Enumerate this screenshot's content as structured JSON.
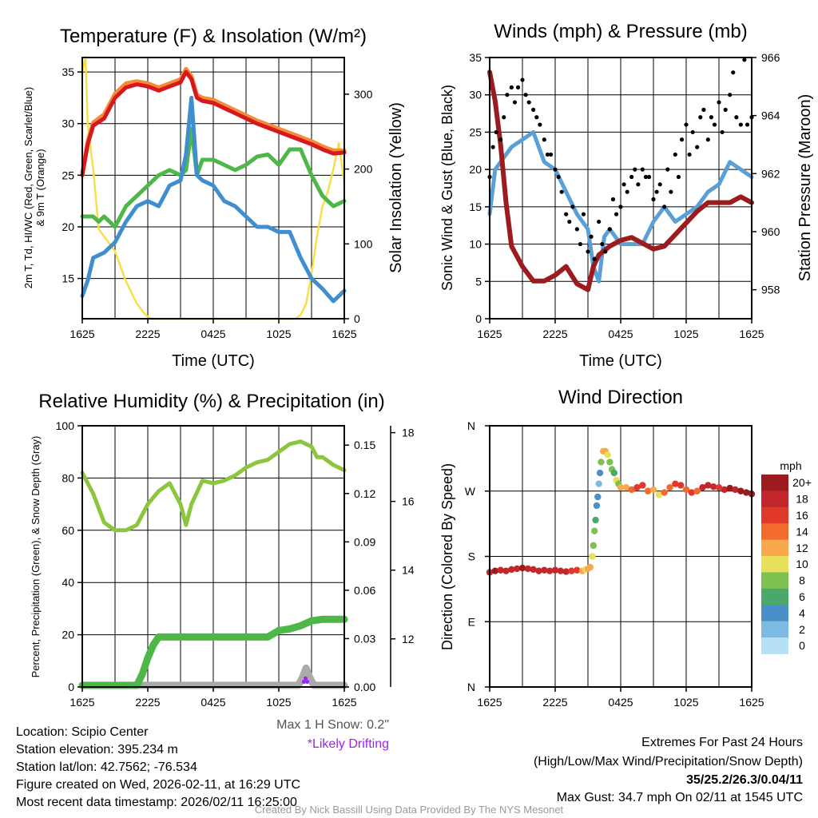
{
  "chart_data": [
    {
      "type": "line",
      "title": "Temperature (F) & Insolation (W/m²)",
      "xlabel": "Time (UTC)",
      "ylabel_lines": [
        "2m T, Td, HI/WC (Red, Green, Scarlet/Blue)",
        "& 9m T (Orange)"
      ],
      "y2label": "Solar Insolation (Yellow)",
      "x_ticks": [
        0,
        6,
        12,
        18,
        24
      ],
      "x_tick_labels": [
        "1625",
        "2225",
        "0425",
        "1025",
        "1625"
      ],
      "xlim": [
        0,
        24
      ],
      "y_ticks": [
        15,
        20,
        25,
        30,
        35
      ],
      "ylim": [
        11.1,
        36.4
      ],
      "y2_ticks": [
        0,
        100,
        200,
        300
      ],
      "y2lim": [
        0,
        349
      ],
      "grid": true,
      "series": [
        {
          "name": "Solar Insolation",
          "axis": "y2",
          "color": "#f5e04a",
          "x": [
            0,
            0.3,
            0.5,
            1,
            1.5,
            2,
            3,
            4,
            5,
            5.8,
            6.3,
            19.5,
            20,
            20.5,
            21,
            21.5,
            22,
            22.5,
            23,
            23.5,
            24
          ],
          "y": [
            330,
            350,
            260,
            200,
            120,
            110,
            90,
            50,
            20,
            5,
            0,
            0,
            5,
            20,
            60,
            110,
            150,
            170,
            200,
            235,
            180
          ]
        },
        {
          "name": "9m T",
          "axis": "y",
          "color": "#f58a3a",
          "x": [
            0,
            0.5,
            1,
            2,
            3,
            4,
            5,
            6,
            7,
            8,
            9,
            9.5,
            10,
            10.5,
            11,
            12,
            13,
            14,
            15,
            16,
            17,
            18,
            19,
            20,
            21,
            22,
            23,
            24
          ],
          "y": [
            25.3,
            28.3,
            30.1,
            30.9,
            32.9,
            33.9,
            34.1,
            33.9,
            33.5,
            33.9,
            34.3,
            35.3,
            34.6,
            32.8,
            32.5,
            32.3,
            31.8,
            31.3,
            30.8,
            30.3,
            29.9,
            29.5,
            29.1,
            28.7,
            28.3,
            27.8,
            27.4,
            27.4
          ]
        },
        {
          "name": "2m T",
          "axis": "y",
          "color": "#d7191c",
          "x": [
            0,
            0.5,
            1,
            2,
            3,
            4,
            5,
            6,
            7,
            8,
            9,
            9.5,
            10,
            10.5,
            11,
            12,
            13,
            14,
            15,
            16,
            17,
            18,
            19,
            20,
            21,
            22,
            23,
            24
          ],
          "y": [
            25,
            28,
            29.8,
            30.5,
            32.5,
            33.5,
            33.8,
            33.6,
            33.2,
            33.6,
            34,
            35,
            34.3,
            32.5,
            32.2,
            32,
            31.5,
            31,
            30.5,
            30,
            29.6,
            29.2,
            28.8,
            28.4,
            28,
            27.5,
            27.1,
            27.2
          ]
        },
        {
          "name": "HI/WC",
          "axis": "y",
          "color": "#4db848",
          "x": [
            0,
            1,
            1.5,
            2,
            3,
            4,
            5,
            6,
            7,
            8,
            9,
            9.5,
            10,
            10.5,
            11,
            12,
            13,
            14,
            15,
            16,
            17,
            18,
            19,
            20,
            21,
            22,
            23,
            24
          ],
          "y": [
            21,
            21,
            20.5,
            21,
            20,
            22,
            23,
            24,
            25,
            25.5,
            25,
            25.5,
            29.5,
            25,
            26.5,
            26.5,
            26,
            25.5,
            26,
            26.8,
            27,
            26,
            27.5,
            27.5,
            25,
            23,
            22,
            22.5
          ]
        },
        {
          "name": "Td",
          "axis": "y",
          "color": "#3f8fd0",
          "x": [
            0,
            0.5,
            1,
            2,
            3,
            4,
            5,
            6,
            7,
            8,
            9,
            9.5,
            10,
            10.5,
            11,
            12,
            13,
            14,
            15,
            16,
            17,
            18,
            19,
            20,
            21,
            22,
            23,
            24
          ],
          "y": [
            13.3,
            14.8,
            17,
            17.5,
            18.5,
            20.5,
            22,
            22.5,
            22,
            24,
            24.5,
            27,
            32.5,
            25,
            24.5,
            24,
            22.5,
            22,
            21,
            20,
            20,
            19.5,
            19.5,
            17,
            15,
            14,
            12.8,
            13.8
          ]
        }
      ]
    },
    {
      "type": "line",
      "title": "Winds (mph) & Pressure (mb)",
      "xlabel": "Time (UTC)",
      "ylabel": "Sonic Wind & Gust (Blue, Black)",
      "y2label": "Station Pressure (Maroon)",
      "x_ticks": [
        0,
        6,
        12,
        18,
        24
      ],
      "x_tick_labels": [
        "1625",
        "2225",
        "0425",
        "1025",
        "1625"
      ],
      "xlim": [
        0,
        24
      ],
      "y_ticks": [
        0,
        5,
        10,
        15,
        20,
        25,
        30,
        35
      ],
      "ylim": [
        0,
        35
      ],
      "y2_ticks": [
        958,
        960,
        962,
        964,
        966
      ],
      "y2lim": [
        957,
        966
      ],
      "grid": true,
      "series": [
        {
          "name": "Sonic Wind",
          "axis": "y",
          "color": "#5a9fd6",
          "x": [
            0,
            0.5,
            1,
            2,
            3,
            4,
            5,
            6,
            7,
            8,
            9,
            9.5,
            10,
            10.5,
            11,
            12,
            13,
            14,
            15,
            16,
            17,
            18,
            19,
            20,
            21,
            22,
            23,
            24
          ],
          "y": [
            14,
            20,
            21,
            23,
            24,
            25,
            21,
            20,
            17,
            14,
            12,
            7,
            5,
            11,
            12,
            10,
            10,
            10,
            13,
            15,
            13,
            14,
            15,
            17,
            18,
            21,
            20,
            19
          ]
        },
        {
          "name": "Station Pressure",
          "axis": "y2",
          "color": "#9b1b1e",
          "x": [
            0,
            0.5,
            1,
            1.5,
            2,
            3,
            4,
            5,
            6,
            7,
            8,
            9,
            9.5,
            10,
            11,
            12,
            13,
            14,
            15,
            16,
            17,
            18,
            19,
            20,
            21,
            22,
            23,
            24
          ],
          "y": [
            965.5,
            964.5,
            963,
            961,
            959.5,
            958.8,
            958.3,
            958.3,
            958.5,
            958.8,
            958.2,
            958,
            958.8,
            959.2,
            959.5,
            959.7,
            959.8,
            959.6,
            959.4,
            959.5,
            959.9,
            960.3,
            960.7,
            961,
            961,
            961,
            961.2,
            961
          ]
        }
      ],
      "gust_points": {
        "name": "Gust",
        "color": "#000000",
        "x": [
          0,
          0.3,
          0.6,
          1,
          1.3,
          1.6,
          2,
          2.3,
          2.6,
          3,
          3.3,
          3.6,
          4,
          4.3,
          4.6,
          5,
          5.3,
          5.6,
          6,
          6.3,
          6.6,
          7,
          7.3,
          7.6,
          8,
          8.3,
          8.6,
          9,
          9.3,
          9.6,
          10,
          10.3,
          10.6,
          11,
          11.3,
          11.6,
          12,
          12.3,
          12.6,
          13,
          13.3,
          13.6,
          14,
          14.3,
          14.6,
          15,
          15.3,
          15.6,
          16,
          16.3,
          16.6,
          17,
          17.3,
          17.6,
          18,
          18.3,
          18.6,
          19,
          19.3,
          19.6,
          20,
          20.3,
          20.6,
          21,
          21.3,
          21.6,
          22,
          22.3,
          22.6,
          23,
          23.33,
          23.6,
          24
        ],
        "y": [
          19,
          23,
          25,
          24,
          27,
          30,
          31,
          29,
          31,
          32,
          30,
          29,
          28,
          27,
          26,
          24,
          22,
          22,
          20,
          19,
          17,
          14,
          13,
          15,
          12,
          10,
          14,
          9,
          11,
          8,
          13,
          10,
          9,
          12,
          16,
          14,
          15,
          18,
          17,
          19,
          20,
          18,
          20,
          19,
          19,
          16,
          17,
          18,
          15,
          20,
          17,
          22,
          19,
          24,
          26,
          22,
          25,
          23,
          27,
          28,
          24,
          27,
          26,
          29,
          25,
          28,
          30,
          33,
          27,
          26,
          34.7,
          26,
          27
        ]
      }
    },
    {
      "type": "line",
      "title": "Relative Humidity (%) & Precipitation (in)",
      "ylabel": "Percent, Precipitation (Green), & Snow Depth (Gray)",
      "x_ticks": [
        0,
        6,
        12,
        18,
        24
      ],
      "x_tick_labels": [
        "1625",
        "2225",
        "0425",
        "1025",
        "1625"
      ],
      "xlim": [
        0,
        24
      ],
      "y_ticks": [
        0,
        20,
        40,
        60,
        80,
        100
      ],
      "ylim": [
        0,
        100
      ],
      "y2_ticks": [
        0.0,
        0.03,
        0.06,
        0.09,
        0.12,
        0.15
      ],
      "y2_tick_labels": [
        "0.00",
        "0.03",
        "0.06",
        "0.09",
        "0.12",
        "0.15"
      ],
      "y2lim": [
        0,
        0.162
      ],
      "y3_ticks": [
        12,
        14,
        16,
        18
      ],
      "y3lim": [
        10.6,
        18.2
      ],
      "grid": true,
      "series": [
        {
          "name": "Relative Humidity",
          "axis": "y",
          "color": "#8cc63f",
          "x": [
            0,
            1,
            2,
            3,
            4,
            5,
            6,
            7,
            8,
            9,
            9.5,
            10,
            11,
            12,
            13,
            14,
            15,
            16,
            17,
            18,
            19,
            20,
            21,
            21.5,
            22,
            23,
            24
          ],
          "y": [
            82,
            74,
            63,
            60,
            60,
            62,
            70,
            75,
            78,
            70,
            62,
            70,
            79,
            78,
            79,
            81,
            84,
            86,
            87,
            90,
            93,
            94,
            92,
            88,
            88,
            85,
            83
          ]
        },
        {
          "name": "Snow Depth",
          "axis": "y3",
          "color": "#aaaaaa",
          "x": [
            0,
            19.8,
            20.2,
            20.5,
            20.8,
            21.2,
            24
          ],
          "y": [
            10.65,
            10.65,
            10.9,
            11.15,
            10.9,
            10.65,
            10.65
          ]
        },
        {
          "name": "Precipitation",
          "axis": "y2",
          "color": "#4db848",
          "x": [
            0,
            5,
            5.5,
            6,
            6.5,
            7,
            8,
            12,
            17,
            17.5,
            18,
            19,
            20,
            21,
            22,
            24
          ],
          "y": [
            0.001,
            0.001,
            0.008,
            0.018,
            0.026,
            0.031,
            0.031,
            0.031,
            0.031,
            0.033,
            0.035,
            0.036,
            0.038,
            0.041,
            0.042,
            0.042
          ]
        }
      ],
      "drift_points": {
        "name": "Likely Drifting",
        "color": "#a020f0",
        "x": [
          20.3,
          20.45,
          20.6
        ],
        "y": [
          10.75,
          10.85,
          10.75
        ]
      },
      "annotations": {
        "max_snow": "Max 1 H Snow: 0.2\"",
        "drifting": "*Likely Drifting"
      }
    },
    {
      "type": "scatter",
      "title": "Wind Direction",
      "ylabel": "Direction (Colored By Speed)",
      "x_ticks": [
        0,
        6,
        12,
        18,
        24
      ],
      "x_tick_labels": [
        "1625",
        "2225",
        "0425",
        "1025",
        "1625"
      ],
      "xlim": [
        0,
        24
      ],
      "y_ticks": [
        0,
        90,
        180,
        270,
        360
      ],
      "y_tick_labels": [
        "N",
        "E",
        "S",
        "W",
        "N"
      ],
      "ylim": [
        0,
        360
      ],
      "grid": true,
      "points": {
        "hour": [
          0,
          0.5,
          1,
          1.5,
          2,
          2.5,
          3,
          3.5,
          4,
          4.5,
          5,
          5.5,
          6,
          6.5,
          7,
          7.5,
          8,
          8.5,
          8.8,
          9,
          9.2,
          9.4,
          9.5,
          9.6,
          9.7,
          9.8,
          9.9,
          10,
          10.1,
          10.2,
          10.4,
          10.6,
          10.8,
          11,
          11.2,
          11.4,
          11.6,
          11.8,
          12,
          12.5,
          13,
          13.5,
          14,
          14.5,
          15,
          15.5,
          16,
          16.5,
          17,
          17.5,
          18,
          18.5,
          19,
          19.5,
          20,
          20.5,
          21,
          21.5,
          22,
          22.5,
          23,
          23.5,
          24
        ],
        "direction": [
          158,
          160,
          161,
          160,
          162,
          163,
          164,
          163,
          162,
          160,
          161,
          160,
          161,
          160,
          159,
          160,
          161,
          160,
          162,
          163,
          165,
          180,
          195,
          215,
          230,
          250,
          262,
          280,
          295,
          310,
          325,
          325,
          320,
          310,
          300,
          295,
          285,
          280,
          275,
          275,
          272,
          275,
          278,
          270,
          272,
          265,
          268,
          275,
          280,
          278,
          272,
          268,
          270,
          275,
          278,
          276,
          275,
          272,
          274,
          272,
          270,
          268,
          266
        ],
        "speed": [
          19,
          20,
          19,
          19,
          18,
          19,
          20,
          19,
          19,
          18,
          19,
          18,
          19,
          19,
          18,
          17,
          16,
          12,
          10,
          13,
          12,
          11,
          9,
          8,
          6,
          5,
          4,
          3,
          5,
          8,
          12,
          13,
          11,
          9,
          8,
          7,
          10,
          9,
          12,
          12,
          14,
          16,
          16,
          14,
          12,
          11,
          14,
          15,
          17,
          16,
          15,
          16,
          15,
          18,
          19,
          18,
          17,
          19,
          20,
          19,
          21,
          20,
          20
        ]
      },
      "legend": {
        "title": "mph",
        "labels": [
          "20+",
          "18",
          "16",
          "14",
          "12",
          "10",
          "8",
          "6",
          "4",
          "2",
          "0"
        ],
        "colors": [
          "#9b1b1e",
          "#c1272d",
          "#e0392b",
          "#f26a2e",
          "#f9a94b",
          "#e8e05a",
          "#7dc14f",
          "#4aa86b",
          "#4a8fc8",
          "#7cb9e3",
          "#b5e0f6"
        ],
        "placement": "right"
      }
    }
  ],
  "station_info": {
    "location": "Location: Scipio Center",
    "elevation": "Station elevation: 395.234 m",
    "latlon": "Station lat/lon: 42.7562; -76.534",
    "created": "Figure created on Wed, 2026-02-11, at 16:29 UTC",
    "recent": "Most recent data timestamp: 2026/02/11 16:25:00"
  },
  "extremes": {
    "heading": "Extremes For Past 24 Hours",
    "legend": "(High/Low/Max Wind/Precipitation/Snow Depth)",
    "values": "35/25.2/26.3/0.04/11",
    "max_gust": "Max Gust: 34.7 mph On 02/11 at 1545 UTC",
    "values_color": "#d7191c"
  },
  "credit": "Created By Nick Bassill Using Data Provided By The NYS Mesonet"
}
